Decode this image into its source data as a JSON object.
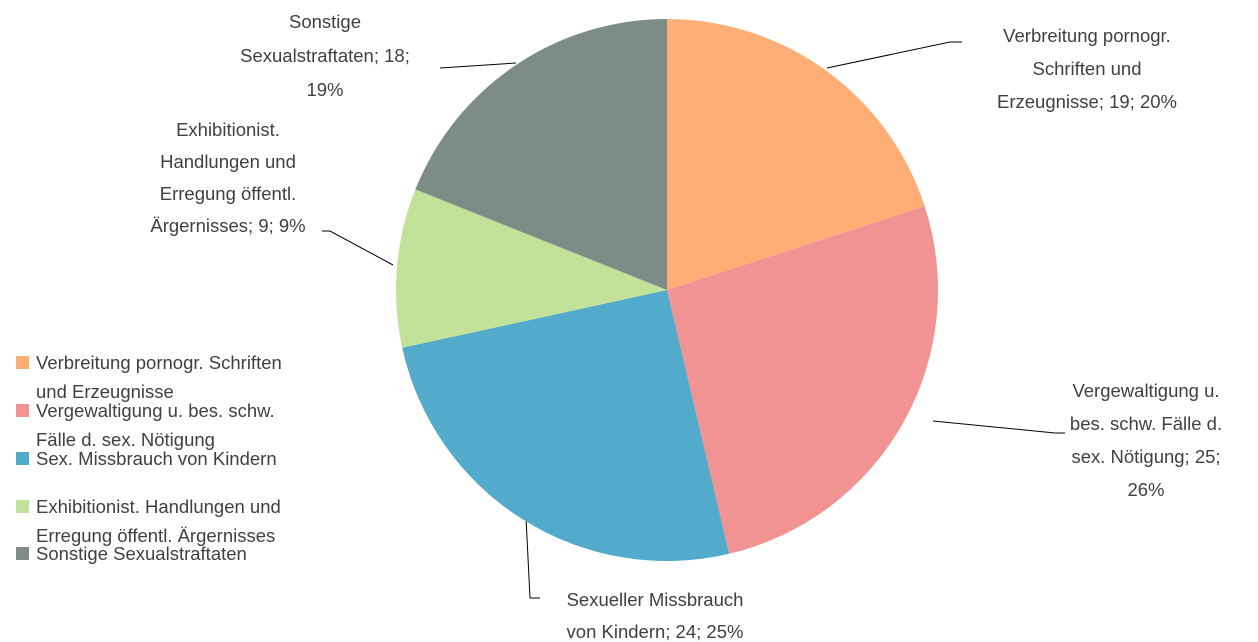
{
  "chart_data": {
    "type": "pie",
    "categories": [
      "Verbreitung pornogr. Schriften und Erzeugnisse",
      "Vergewaltigung u. bes. schw. Fälle d. sex. Nötigung",
      "Sex. Missbrauch von Kindern",
      "Exhibitionist. Handlungen und Erregung öffentl. Ärgernisses",
      "Sonstige Sexualstraftaten"
    ],
    "values": [
      19,
      25,
      24,
      9,
      18
    ],
    "value_labels": [
      "Verbreitung pornogr. Schriften und Erzeugnisse; 19; 20%",
      "Vergewaltigung u. bes. schw. Fälle d. sex. Nötigung; 25; 26%",
      "Sexueller Missbrauch von Kindern; 24; 25%",
      "Exhibitionist. Handlungen und Erregung öffentl. Ärgernisses; 9; 9%",
      "Sonstige Sexualstraftaten; 18; 19%"
    ],
    "colors": [
      "#fcae74",
      "#f19393",
      "#52abcb",
      "#c2e29a",
      "#7d8c87"
    ],
    "legend": "left"
  }
}
